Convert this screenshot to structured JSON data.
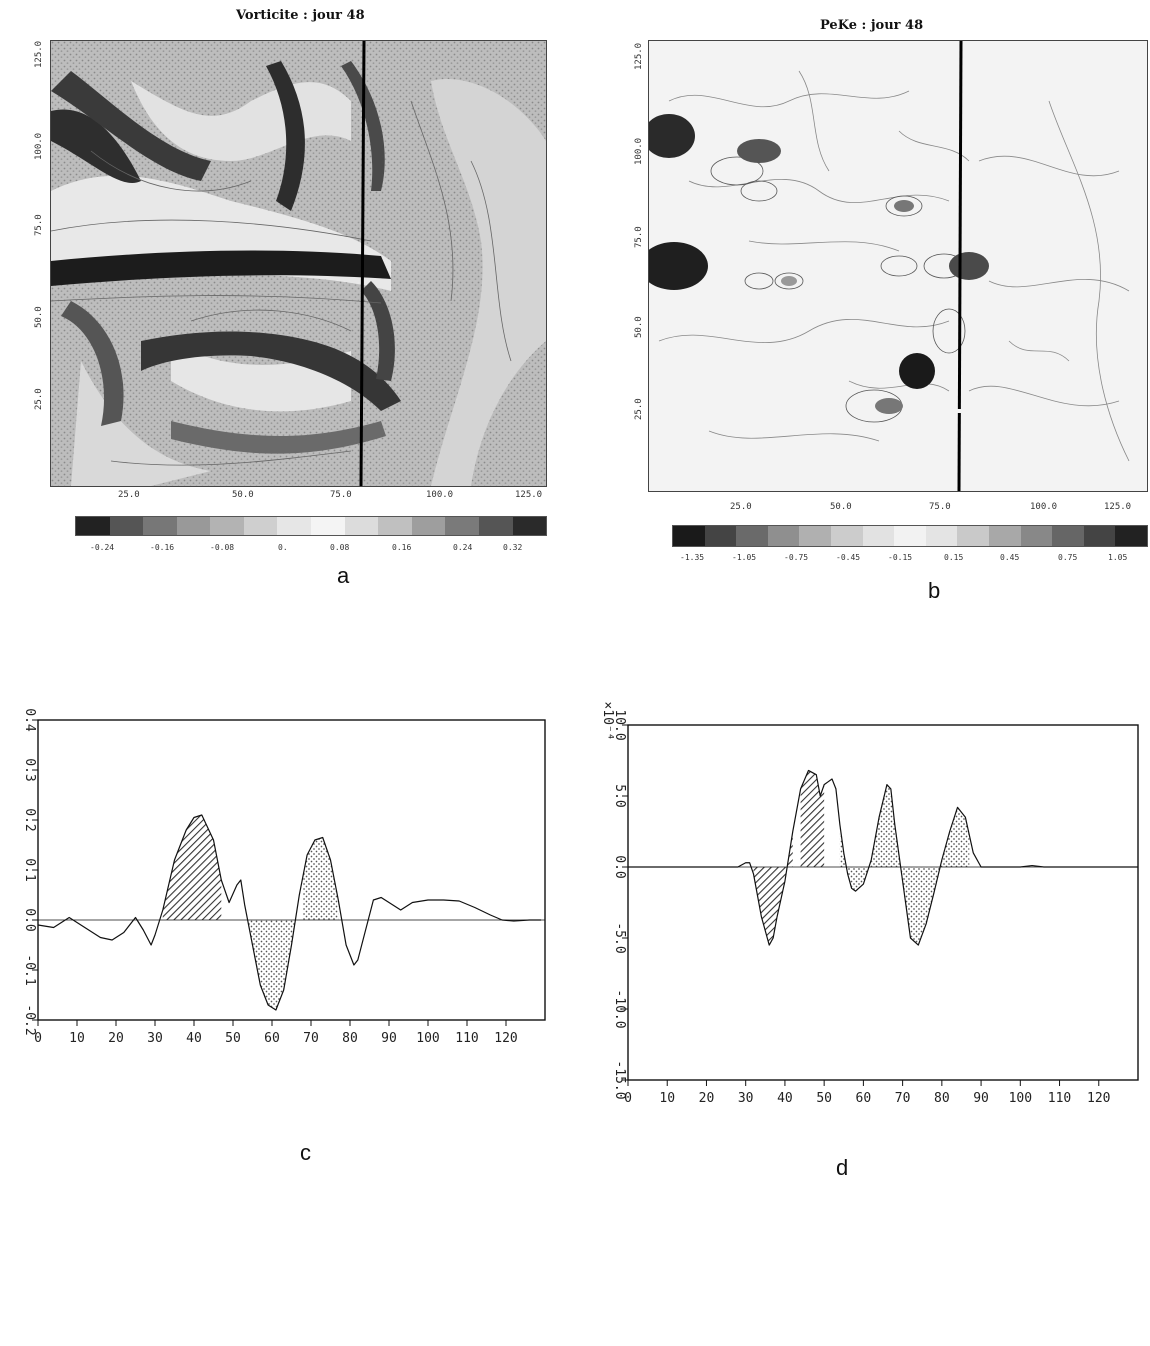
{
  "panels": {
    "a": {
      "letter": "a",
      "title": "Vorticite : jour 48",
      "x_ticks": [
        "25.0",
        "50.0",
        "75.0",
        "100.0",
        "125.0"
      ],
      "y_ticks": [
        "125.0",
        "100.0",
        "75.0",
        "50.0",
        "25.0"
      ],
      "colorbar": [
        "-0.24",
        "-0.16",
        "-0.08",
        "0.",
        "0.08",
        "0.16",
        "0.24",
        "0.32"
      ],
      "section_line_x": 78
    },
    "b": {
      "letter": "b",
      "title": "PeKe : jour 48",
      "x_ticks": [
        "25.0",
        "50.0",
        "75.0",
        "100.0",
        "125.0"
      ],
      "y_ticks": [
        "125.0",
        "100.0",
        "75.0",
        "50.0",
        "25.0"
      ],
      "colorbar": [
        "-1.35",
        "-1.05",
        "-0.75",
        "-0.45",
        "-0.15",
        "0.15",
        "0.45",
        "0.75",
        "1.05"
      ],
      "section_line_x": 78
    },
    "c": {
      "letter": "c"
    },
    "d": {
      "letter": "d",
      "y_multiplier": "×10⁻⁴"
    }
  },
  "colors": {
    "ink": "#111111",
    "hatch": "#333333",
    "dots": "#555555",
    "map_dark": "#3a3a3a",
    "map_mid": "#8a8a8a",
    "map_light": "#d0d0d0"
  },
  "chart_data": [
    {
      "type": "line",
      "panel": "c",
      "x_ticks": [
        0,
        10,
        20,
        30,
        40,
        50,
        60,
        70,
        80,
        90,
        100,
        110,
        120
      ],
      "y_ticks": [
        "-0.2",
        "-0.1",
        "0.0",
        "0.1",
        "0.2",
        "0.3",
        "0.4"
      ],
      "xlim": [
        0,
        130
      ],
      "ylim": [
        -0.2,
        0.4
      ],
      "x": [
        0,
        4,
        8,
        12,
        16,
        19,
        22,
        25,
        27,
        29,
        30,
        32,
        35,
        38,
        40,
        42,
        45,
        47,
        49,
        51,
        52,
        53,
        55,
        57,
        59,
        61,
        63,
        65,
        67,
        69,
        71,
        73,
        75,
        77,
        79,
        81,
        82,
        84,
        86,
        88,
        90,
        93,
        96,
        100,
        104,
        108,
        112,
        116,
        119,
        122,
        126,
        129
      ],
      "y": [
        -0.01,
        -0.015,
        0.005,
        -0.015,
        -0.035,
        -0.04,
        -0.025,
        0.005,
        -0.02,
        -0.05,
        -0.03,
        0.02,
        0.12,
        0.18,
        0.205,
        0.21,
        0.16,
        0.08,
        0.035,
        0.07,
        0.08,
        0.03,
        -0.05,
        -0.13,
        -0.17,
        -0.18,
        -0.14,
        -0.05,
        0.05,
        0.13,
        0.16,
        0.165,
        0.12,
        0.04,
        -0.05,
        -0.09,
        -0.08,
        -0.02,
        0.04,
        0.045,
        0.035,
        0.02,
        0.035,
        0.04,
        0.04,
        0.038,
        0.025,
        0.01,
        0.0,
        -0.002,
        0.0,
        0.0
      ],
      "hatched_x": [
        32,
        47
      ],
      "dotted_x": [
        [
          54,
          66
        ],
        [
          68,
          77
        ]
      ]
    },
    {
      "type": "line",
      "panel": "d",
      "x_ticks": [
        0,
        10,
        20,
        30,
        40,
        50,
        60,
        70,
        80,
        90,
        100,
        110,
        120
      ],
      "y_ticks": [
        "-15.0",
        "-10.0",
        "-5.0",
        "0.0",
        "5.0",
        "10.0"
      ],
      "xlim": [
        0,
        130
      ],
      "ylim": [
        -15,
        10
      ],
      "x": [
        0,
        10,
        20,
        28,
        30,
        31,
        32,
        34,
        36,
        37,
        38,
        40,
        42,
        44,
        46,
        48,
        49,
        50,
        51,
        52,
        53,
        54,
        55,
        56,
        57,
        58,
        60,
        62,
        64,
        66,
        67,
        68,
        70,
        72,
        74,
        76,
        78,
        80,
        82,
        84,
        86,
        88,
        90,
        95,
        100,
        103,
        106,
        110,
        120,
        130
      ],
      "y": [
        0,
        0,
        0,
        0,
        0.3,
        0.3,
        -0.5,
        -3.5,
        -5.5,
        -5,
        -3.5,
        -1,
        2.5,
        5.5,
        6.8,
        6.5,
        5,
        5.8,
        6,
        6.2,
        5.5,
        3,
        1,
        -0.5,
        -1.5,
        -1.7,
        -1.2,
        0.5,
        3.5,
        5.8,
        5.5,
        3,
        -1,
        -5,
        -5.5,
        -4,
        -1.8,
        0.5,
        2.5,
        4.2,
        3.5,
        1,
        0,
        0,
        0,
        0.1,
        0,
        0,
        0,
        0
      ],
      "hatched_x": [
        [
          32,
          42
        ],
        [
          44,
          50
        ]
      ],
      "dotted_x": [
        [
          54,
          62
        ],
        [
          62,
          69
        ],
        [
          69,
          78
        ],
        [
          78,
          87
        ]
      ]
    }
  ]
}
